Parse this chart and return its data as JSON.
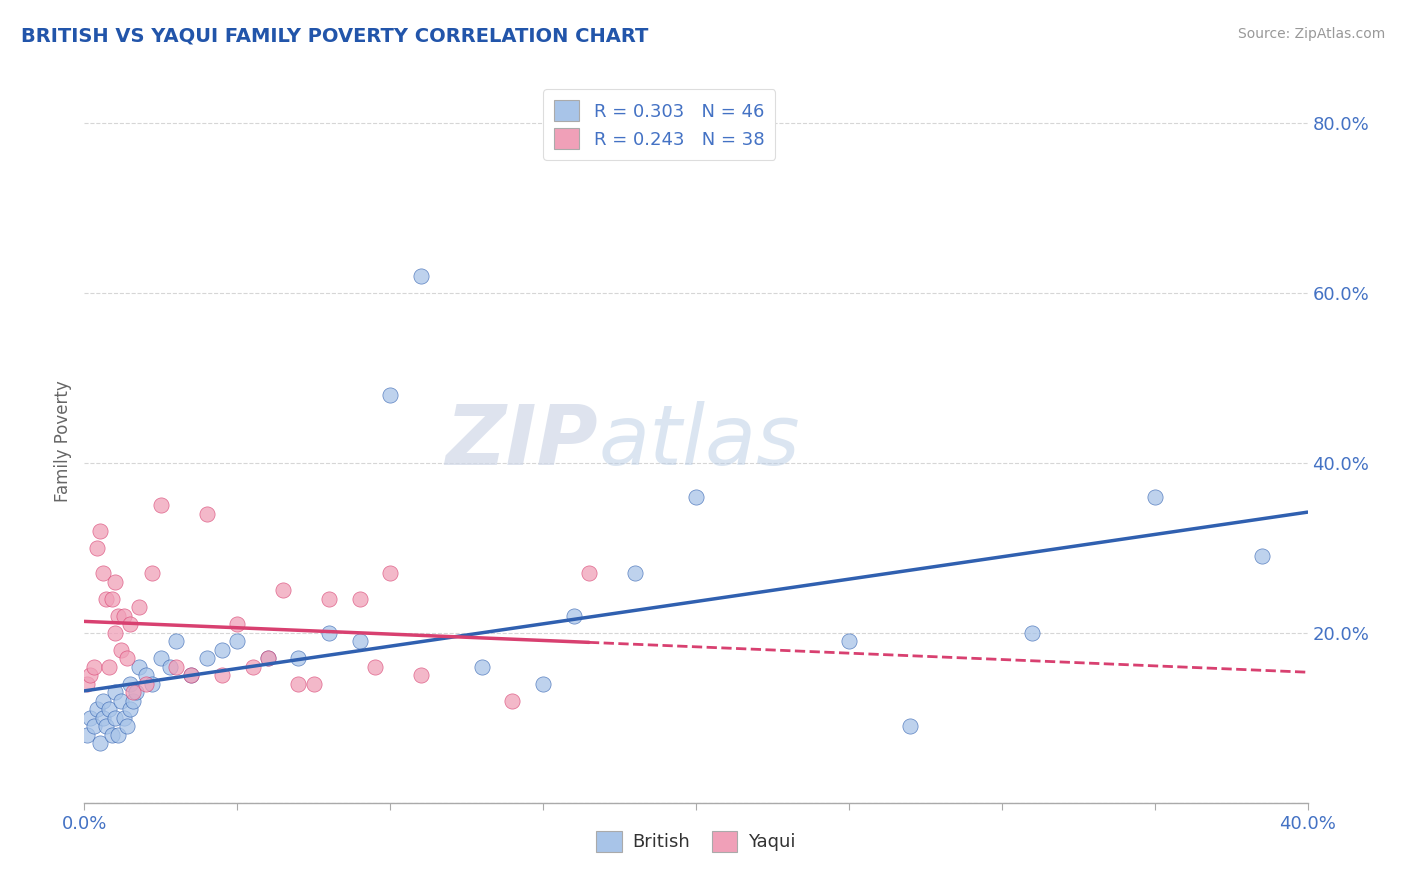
{
  "title": "BRITISH VS YAQUI FAMILY POVERTY CORRELATION CHART",
  "source": "Source: ZipAtlas.com",
  "ylabel": "Family Poverty",
  "xlim": [
    0.0,
    0.4
  ],
  "ylim": [
    0.0,
    0.85
  ],
  "xticks": [
    0.0,
    0.05,
    0.1,
    0.15,
    0.2,
    0.25,
    0.3,
    0.35,
    0.4
  ],
  "yticks": [
    0.0,
    0.2,
    0.4,
    0.6,
    0.8
  ],
  "british_color": "#a8c4e8",
  "yaqui_color": "#f0a0b8",
  "british_line_color": "#3060b0",
  "yaqui_line_color": "#d84070",
  "legend_R_british": "R = 0.303",
  "legend_N_british": "N = 46",
  "legend_R_yaqui": "R = 0.243",
  "legend_N_yaqui": "N = 38",
  "background_color": "#ffffff",
  "grid_color": "#cccccc",
  "title_color": "#2255aa",
  "axis_label_color": "#666666",
  "tick_label_color": "#4472c4",
  "watermark_zip": "ZIP",
  "watermark_atlas": "atlas",
  "british_x": [
    0.001,
    0.002,
    0.003,
    0.004,
    0.005,
    0.006,
    0.006,
    0.007,
    0.008,
    0.009,
    0.01,
    0.01,
    0.011,
    0.012,
    0.013,
    0.014,
    0.015,
    0.015,
    0.016,
    0.017,
    0.018,
    0.02,
    0.022,
    0.025,
    0.028,
    0.03,
    0.035,
    0.04,
    0.045,
    0.05,
    0.06,
    0.07,
    0.08,
    0.09,
    0.1,
    0.11,
    0.13,
    0.15,
    0.16,
    0.18,
    0.2,
    0.25,
    0.27,
    0.31,
    0.35,
    0.385
  ],
  "british_y": [
    0.08,
    0.1,
    0.09,
    0.11,
    0.07,
    0.1,
    0.12,
    0.09,
    0.11,
    0.08,
    0.1,
    0.13,
    0.08,
    0.12,
    0.1,
    0.09,
    0.11,
    0.14,
    0.12,
    0.13,
    0.16,
    0.15,
    0.14,
    0.17,
    0.16,
    0.19,
    0.15,
    0.17,
    0.18,
    0.19,
    0.17,
    0.17,
    0.2,
    0.19,
    0.48,
    0.62,
    0.16,
    0.14,
    0.22,
    0.27,
    0.36,
    0.19,
    0.09,
    0.2,
    0.36,
    0.29
  ],
  "yaqui_x": [
    0.001,
    0.002,
    0.003,
    0.004,
    0.005,
    0.006,
    0.007,
    0.008,
    0.009,
    0.01,
    0.01,
    0.011,
    0.012,
    0.013,
    0.014,
    0.015,
    0.016,
    0.018,
    0.02,
    0.022,
    0.025,
    0.03,
    0.035,
    0.04,
    0.045,
    0.05,
    0.055,
    0.06,
    0.065,
    0.07,
    0.075,
    0.08,
    0.09,
    0.095,
    0.1,
    0.11,
    0.14,
    0.165
  ],
  "yaqui_y": [
    0.14,
    0.15,
    0.16,
    0.3,
    0.32,
    0.27,
    0.24,
    0.16,
    0.24,
    0.2,
    0.26,
    0.22,
    0.18,
    0.22,
    0.17,
    0.21,
    0.13,
    0.23,
    0.14,
    0.27,
    0.35,
    0.16,
    0.15,
    0.34,
    0.15,
    0.21,
    0.16,
    0.17,
    0.25,
    0.14,
    0.14,
    0.24,
    0.24,
    0.16,
    0.27,
    0.15,
    0.12,
    0.27
  ]
}
